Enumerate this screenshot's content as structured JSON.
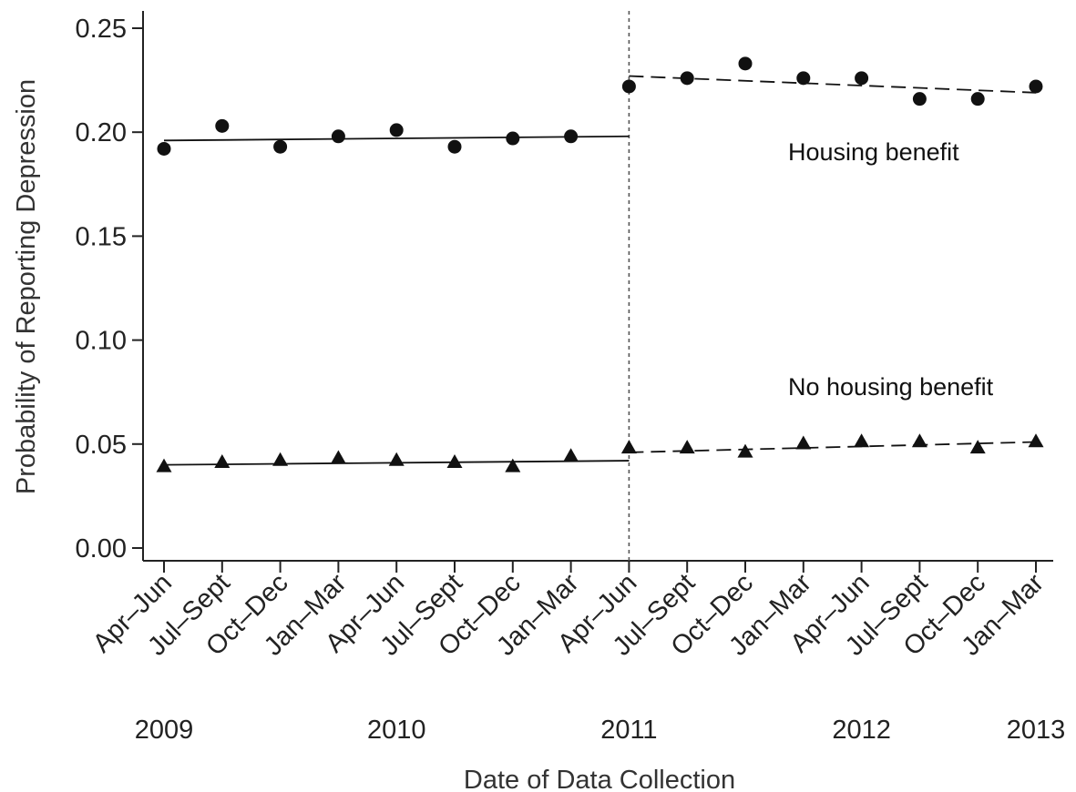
{
  "chart_data": {
    "type": "scatter",
    "ylabel": "Probability of Reporting Depression",
    "xlabel": "Date of Data Collection",
    "ylim": [
      0.0,
      0.25
    ],
    "y_ticks": [
      "0.00",
      "0.05",
      "0.10",
      "0.15",
      "0.20",
      "0.25"
    ],
    "categories": [
      "Apr–Jun",
      "Jul–Sept",
      "Oct–Dec",
      "Jan–Mar",
      "Apr–Jun",
      "Jul–Sept",
      "Oct–Dec",
      "Jan–Mar",
      "Apr–Jun",
      "Jul–Sept",
      "Oct–Dec",
      "Jan–Mar",
      "Apr–Jun",
      "Jul–Sept",
      "Oct–Dec",
      "Jan–Mar"
    ],
    "years": [
      {
        "label": "2009",
        "category_index": 0
      },
      {
        "label": "2010",
        "category_index": 4
      },
      {
        "label": "2011",
        "category_index": 8
      },
      {
        "label": "2012",
        "category_index": 12
      },
      {
        "label": "2013",
        "category_index": 15
      }
    ],
    "break_category_index": 8,
    "series": [
      {
        "name": "Housing benefit",
        "marker": "circle",
        "values": [
          0.192,
          0.203,
          0.193,
          0.198,
          0.201,
          0.193,
          0.197,
          0.198,
          0.222,
          0.226,
          0.233,
          0.226,
          0.226,
          0.216,
          0.216,
          0.222
        ],
        "fit_before": {
          "from_index": 0,
          "to_index": 8,
          "start": 0.196,
          "end": 0.198
        },
        "fit_after": {
          "from_index": 8,
          "to_index": 15,
          "start": 0.227,
          "end": 0.219
        }
      },
      {
        "name": "No housing benefit",
        "marker": "triangle",
        "values": [
          0.039,
          0.041,
          0.042,
          0.043,
          0.042,
          0.041,
          0.039,
          0.044,
          0.048,
          0.048,
          0.046,
          0.05,
          0.051,
          0.051,
          0.048,
          0.051
        ],
        "fit_before": {
          "from_index": 0,
          "to_index": 8,
          "start": 0.04,
          "end": 0.042
        },
        "fit_after": {
          "from_index": 8,
          "to_index": 15,
          "start": 0.046,
          "end": 0.051
        }
      }
    ],
    "annotations": [
      "Housing benefit",
      "No housing benefit"
    ],
    "grid": false
  }
}
